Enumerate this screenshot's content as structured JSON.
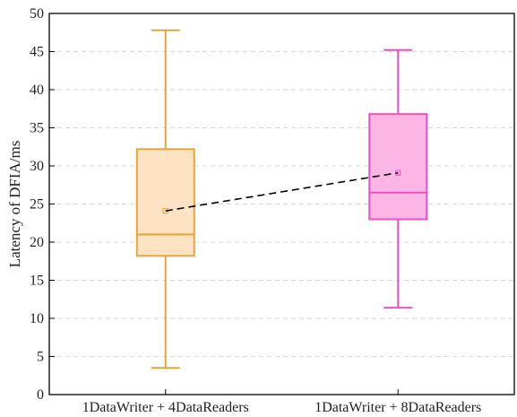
{
  "chart_data": {
    "type": "box",
    "ylabel": "Latency of DFIA/ms",
    "ylim": [
      0,
      50
    ],
    "yticks": [
      0,
      5,
      10,
      15,
      20,
      25,
      30,
      35,
      40,
      45,
      50
    ],
    "grid": "horizontal dashed",
    "categories": [
      "1DataWriter + 4DataReaders",
      "1DataWriter + 8DataReaders"
    ],
    "boxes": [
      {
        "category": "1DataWriter + 4DataReaders",
        "min": 3.5,
        "q1": 18.2,
        "median": 21.0,
        "q3": 32.2,
        "max": 47.8,
        "mean": 24.1,
        "edge_color": "#E8A33A",
        "fill_color": "#FDE3C4"
      },
      {
        "category": "1DataWriter + 8DataReaders",
        "min": 11.4,
        "q1": 23.0,
        "median": 26.5,
        "q3": 36.8,
        "max": 45.2,
        "mean": 29.1,
        "edge_color": "#F04FBF",
        "fill_color": "#FCB6E6"
      }
    ],
    "mean_line": {
      "style": "dashed",
      "color": "#000000"
    }
  }
}
